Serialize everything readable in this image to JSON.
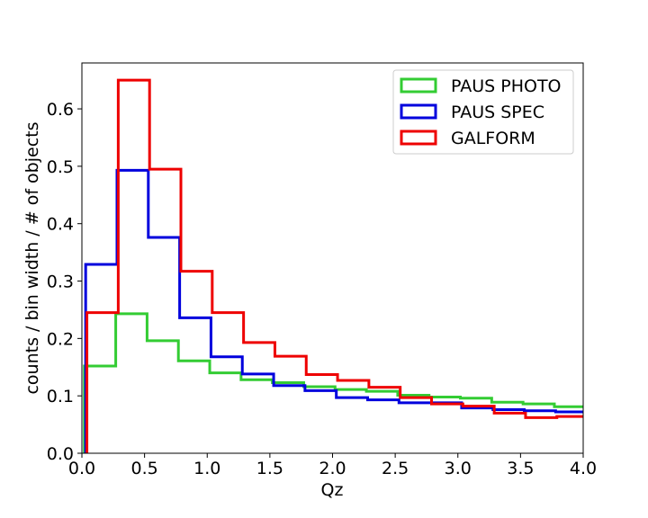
{
  "chart_data": {
    "type": "histogram-step",
    "xlabel": "Qz",
    "ylabel": "counts / bin width / # of objects",
    "xlim": [
      0.0,
      4.0
    ],
    "ylim": [
      0.0,
      0.68
    ],
    "xticks": [
      0.0,
      0.5,
      1.0,
      1.5,
      2.0,
      2.5,
      3.0,
      3.5,
      4.0
    ],
    "xtick_labels": [
      "0.0",
      "0.5",
      "1.0",
      "1.5",
      "2.0",
      "2.5",
      "3.0",
      "3.5",
      "4.0"
    ],
    "yticks": [
      0.0,
      0.1,
      0.2,
      0.3,
      0.4,
      0.5,
      0.6
    ],
    "ytick_labels": [
      "0.0",
      "0.1",
      "0.2",
      "0.3",
      "0.4",
      "0.5",
      "0.6"
    ],
    "legend_position": "top-right",
    "series": [
      {
        "name": "PAUS PHOTO",
        "color": "#33cc33",
        "edges": [
          0.02,
          0.27,
          0.52,
          0.77,
          1.02,
          1.27,
          1.52,
          1.77,
          2.02,
          2.27,
          2.52,
          2.77,
          3.02,
          3.27,
          3.52,
          3.77,
          4.02
        ],
        "values": [
          0.152,
          0.243,
          0.196,
          0.161,
          0.14,
          0.128,
          0.123,
          0.116,
          0.111,
          0.108,
          0.101,
          0.098,
          0.096,
          0.089,
          0.086,
          0.081
        ]
      },
      {
        "name": "PAUS SPEC",
        "color": "#0000dd",
        "edges": [
          0.03,
          0.28,
          0.53,
          0.78,
          1.03,
          1.28,
          1.53,
          1.78,
          2.03,
          2.28,
          2.53,
          2.78,
          3.03,
          3.28,
          3.53,
          3.78,
          4.03
        ],
        "values": [
          0.329,
          0.493,
          0.376,
          0.236,
          0.168,
          0.138,
          0.118,
          0.109,
          0.097,
          0.093,
          0.088,
          0.088,
          0.079,
          0.076,
          0.074,
          0.072
        ]
      },
      {
        "name": "GALFORM",
        "color": "#ee0000",
        "edges": [
          0.04,
          0.29,
          0.54,
          0.79,
          1.04,
          1.29,
          1.54,
          1.79,
          2.04,
          2.29,
          2.54,
          2.79,
          3.04,
          3.29,
          3.54,
          3.79,
          4.04
        ],
        "values": [
          0.245,
          0.65,
          0.495,
          0.317,
          0.245,
          0.193,
          0.169,
          0.137,
          0.127,
          0.115,
          0.097,
          0.086,
          0.082,
          0.07,
          0.062,
          0.064
        ]
      }
    ]
  }
}
